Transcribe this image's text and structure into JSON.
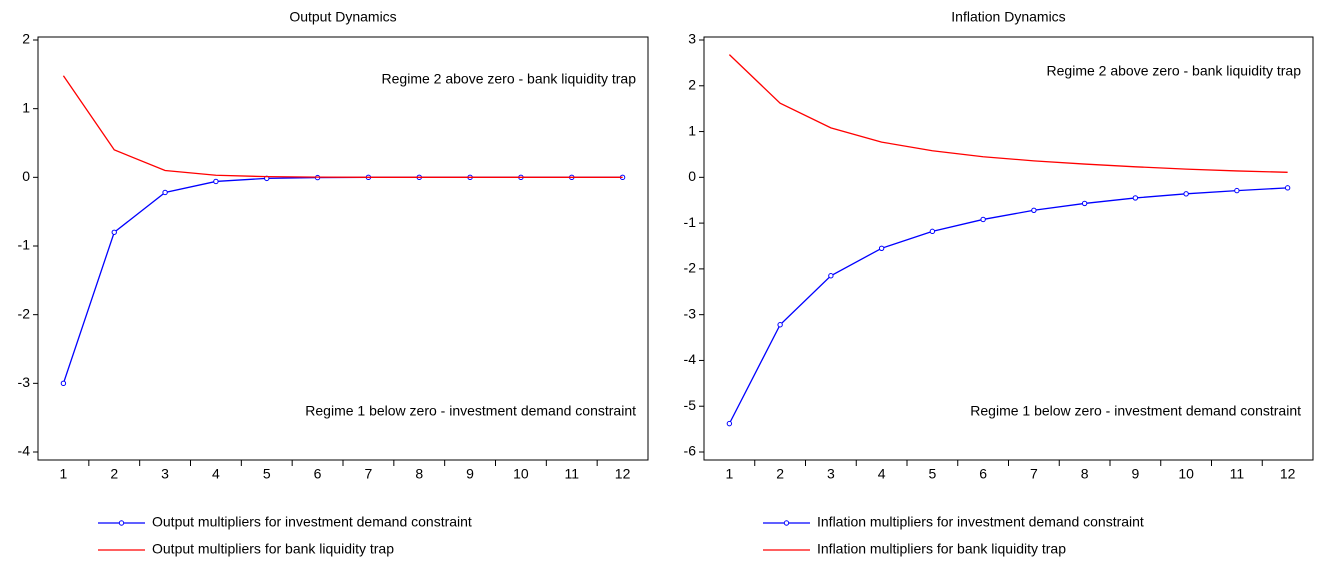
{
  "chart_data": [
    {
      "type": "line",
      "title": "Output Dynamics",
      "categories": [
        "1",
        "2",
        "3",
        "4",
        "5",
        "6",
        "7",
        "8",
        "9",
        "10",
        "11",
        "12"
      ],
      "series": [
        {
          "name": "Output multipliers for investment demand constraint",
          "color": "#0000ff",
          "marker": true,
          "values": [
            -3.0,
            -0.8,
            -0.22,
            -0.06,
            -0.015,
            -0.004,
            0,
            0,
            0,
            0,
            0,
            0
          ]
        },
        {
          "name": "Output multipliers for bank liquidity trap",
          "color": "#ff0000",
          "marker": false,
          "values": [
            1.48,
            0.4,
            0.1,
            0.03,
            0.01,
            0.003,
            0,
            0,
            0,
            0,
            0,
            0
          ]
        }
      ],
      "annotations": [
        "Regime 2 above zero - bank liquidity trap",
        "Regime 1 below zero - investment demand constraint"
      ],
      "ylim": [
        -4,
        2
      ],
      "yticks": [
        -4,
        -3,
        -2,
        -1,
        0,
        1,
        2
      ]
    },
    {
      "type": "line",
      "title": "Inflation Dynamics",
      "categories": [
        "1",
        "2",
        "3",
        "4",
        "5",
        "6",
        "7",
        "8",
        "9",
        "10",
        "11",
        "12"
      ],
      "series": [
        {
          "name": "Inflation multipliers for investment demand constraint",
          "color": "#0000ff",
          "marker": true,
          "values": [
            -5.38,
            -3.22,
            -2.15,
            -1.55,
            -1.18,
            -0.92,
            -0.72,
            -0.57,
            -0.45,
            -0.36,
            -0.29,
            -0.23
          ]
        },
        {
          "name": "Inflation multipliers for bank liquidity trap",
          "color": "#ff0000",
          "marker": false,
          "values": [
            2.68,
            1.62,
            1.08,
            0.77,
            0.58,
            0.45,
            0.36,
            0.29,
            0.23,
            0.18,
            0.14,
            0.11
          ]
        }
      ],
      "annotations": [
        "Regime 2 above zero - bank liquidity trap",
        "Regime 1 below zero - investment demand constraint"
      ],
      "ylim": [
        -6,
        3
      ],
      "yticks": [
        -6,
        -5,
        -4,
        -3,
        -2,
        -1,
        0,
        1,
        2,
        3
      ]
    }
  ]
}
